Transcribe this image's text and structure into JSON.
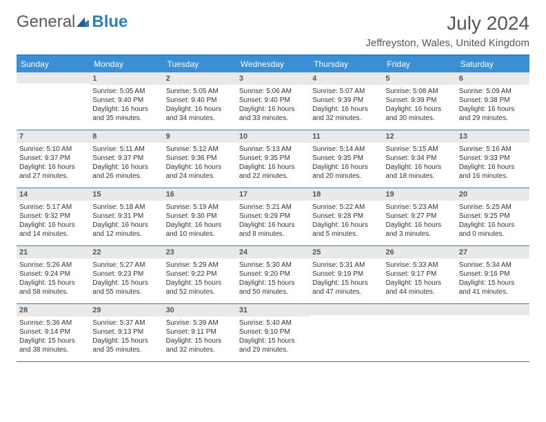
{
  "logo": {
    "text_gray": "General",
    "text_blue": "Blue"
  },
  "title": "July 2024",
  "location": "Jeffreyston, Wales, United Kingdom",
  "colors": {
    "header_bg": "#3b8fd4",
    "border": "#2d7fc1",
    "daynum_bg": "#e9e9e9",
    "text": "#333333",
    "title_text": "#555555"
  },
  "fonts": {
    "title_size": 28,
    "location_size": 15,
    "dayhead_size": 12,
    "cell_size": 10,
    "daynum_size": 11
  },
  "day_names": [
    "Sunday",
    "Monday",
    "Tuesday",
    "Wednesday",
    "Thursday",
    "Friday",
    "Saturday"
  ],
  "weeks": [
    [
      {
        "day": "",
        "sunrise": "",
        "sunset": "",
        "daylight1": "",
        "daylight2": ""
      },
      {
        "day": "1",
        "sunrise": "Sunrise: 5:05 AM",
        "sunset": "Sunset: 9:40 PM",
        "daylight1": "Daylight: 16 hours",
        "daylight2": "and 35 minutes."
      },
      {
        "day": "2",
        "sunrise": "Sunrise: 5:05 AM",
        "sunset": "Sunset: 9:40 PM",
        "daylight1": "Daylight: 16 hours",
        "daylight2": "and 34 minutes."
      },
      {
        "day": "3",
        "sunrise": "Sunrise: 5:06 AM",
        "sunset": "Sunset: 9:40 PM",
        "daylight1": "Daylight: 16 hours",
        "daylight2": "and 33 minutes."
      },
      {
        "day": "4",
        "sunrise": "Sunrise: 5:07 AM",
        "sunset": "Sunset: 9:39 PM",
        "daylight1": "Daylight: 16 hours",
        "daylight2": "and 32 minutes."
      },
      {
        "day": "5",
        "sunrise": "Sunrise: 5:08 AM",
        "sunset": "Sunset: 9:39 PM",
        "daylight1": "Daylight: 16 hours",
        "daylight2": "and 30 minutes."
      },
      {
        "day": "6",
        "sunrise": "Sunrise: 5:09 AM",
        "sunset": "Sunset: 9:38 PM",
        "daylight1": "Daylight: 16 hours",
        "daylight2": "and 29 minutes."
      }
    ],
    [
      {
        "day": "7",
        "sunrise": "Sunrise: 5:10 AM",
        "sunset": "Sunset: 9:37 PM",
        "daylight1": "Daylight: 16 hours",
        "daylight2": "and 27 minutes."
      },
      {
        "day": "8",
        "sunrise": "Sunrise: 5:11 AM",
        "sunset": "Sunset: 9:37 PM",
        "daylight1": "Daylight: 16 hours",
        "daylight2": "and 26 minutes."
      },
      {
        "day": "9",
        "sunrise": "Sunrise: 5:12 AM",
        "sunset": "Sunset: 9:36 PM",
        "daylight1": "Daylight: 16 hours",
        "daylight2": "and 24 minutes."
      },
      {
        "day": "10",
        "sunrise": "Sunrise: 5:13 AM",
        "sunset": "Sunset: 9:35 PM",
        "daylight1": "Daylight: 16 hours",
        "daylight2": "and 22 minutes."
      },
      {
        "day": "11",
        "sunrise": "Sunrise: 5:14 AM",
        "sunset": "Sunset: 9:35 PM",
        "daylight1": "Daylight: 16 hours",
        "daylight2": "and 20 minutes."
      },
      {
        "day": "12",
        "sunrise": "Sunrise: 5:15 AM",
        "sunset": "Sunset: 9:34 PM",
        "daylight1": "Daylight: 16 hours",
        "daylight2": "and 18 minutes."
      },
      {
        "day": "13",
        "sunrise": "Sunrise: 5:16 AM",
        "sunset": "Sunset: 9:33 PM",
        "daylight1": "Daylight: 16 hours",
        "daylight2": "and 16 minutes."
      }
    ],
    [
      {
        "day": "14",
        "sunrise": "Sunrise: 5:17 AM",
        "sunset": "Sunset: 9:32 PM",
        "daylight1": "Daylight: 16 hours",
        "daylight2": "and 14 minutes."
      },
      {
        "day": "15",
        "sunrise": "Sunrise: 5:18 AM",
        "sunset": "Sunset: 9:31 PM",
        "daylight1": "Daylight: 16 hours",
        "daylight2": "and 12 minutes."
      },
      {
        "day": "16",
        "sunrise": "Sunrise: 5:19 AM",
        "sunset": "Sunset: 9:30 PM",
        "daylight1": "Daylight: 16 hours",
        "daylight2": "and 10 minutes."
      },
      {
        "day": "17",
        "sunrise": "Sunrise: 5:21 AM",
        "sunset": "Sunset: 9:29 PM",
        "daylight1": "Daylight: 16 hours",
        "daylight2": "and 8 minutes."
      },
      {
        "day": "18",
        "sunrise": "Sunrise: 5:22 AM",
        "sunset": "Sunset: 9:28 PM",
        "daylight1": "Daylight: 16 hours",
        "daylight2": "and 5 minutes."
      },
      {
        "day": "19",
        "sunrise": "Sunrise: 5:23 AM",
        "sunset": "Sunset: 9:27 PM",
        "daylight1": "Daylight: 16 hours",
        "daylight2": "and 3 minutes."
      },
      {
        "day": "20",
        "sunrise": "Sunrise: 5:25 AM",
        "sunset": "Sunset: 9:25 PM",
        "daylight1": "Daylight: 16 hours",
        "daylight2": "and 0 minutes."
      }
    ],
    [
      {
        "day": "21",
        "sunrise": "Sunrise: 5:26 AM",
        "sunset": "Sunset: 9:24 PM",
        "daylight1": "Daylight: 15 hours",
        "daylight2": "and 58 minutes."
      },
      {
        "day": "22",
        "sunrise": "Sunrise: 5:27 AM",
        "sunset": "Sunset: 9:23 PM",
        "daylight1": "Daylight: 15 hours",
        "daylight2": "and 55 minutes."
      },
      {
        "day": "23",
        "sunrise": "Sunrise: 5:29 AM",
        "sunset": "Sunset: 9:22 PM",
        "daylight1": "Daylight: 15 hours",
        "daylight2": "and 52 minutes."
      },
      {
        "day": "24",
        "sunrise": "Sunrise: 5:30 AM",
        "sunset": "Sunset: 9:20 PM",
        "daylight1": "Daylight: 15 hours",
        "daylight2": "and 50 minutes."
      },
      {
        "day": "25",
        "sunrise": "Sunrise: 5:31 AM",
        "sunset": "Sunset: 9:19 PM",
        "daylight1": "Daylight: 15 hours",
        "daylight2": "and 47 minutes."
      },
      {
        "day": "26",
        "sunrise": "Sunrise: 5:33 AM",
        "sunset": "Sunset: 9:17 PM",
        "daylight1": "Daylight: 15 hours",
        "daylight2": "and 44 minutes."
      },
      {
        "day": "27",
        "sunrise": "Sunrise: 5:34 AM",
        "sunset": "Sunset: 9:16 PM",
        "daylight1": "Daylight: 15 hours",
        "daylight2": "and 41 minutes."
      }
    ],
    [
      {
        "day": "28",
        "sunrise": "Sunrise: 5:36 AM",
        "sunset": "Sunset: 9:14 PM",
        "daylight1": "Daylight: 15 hours",
        "daylight2": "and 38 minutes."
      },
      {
        "day": "29",
        "sunrise": "Sunrise: 5:37 AM",
        "sunset": "Sunset: 9:13 PM",
        "daylight1": "Daylight: 15 hours",
        "daylight2": "and 35 minutes."
      },
      {
        "day": "30",
        "sunrise": "Sunrise: 5:39 AM",
        "sunset": "Sunset: 9:11 PM",
        "daylight1": "Daylight: 15 hours",
        "daylight2": "and 32 minutes."
      },
      {
        "day": "31",
        "sunrise": "Sunrise: 5:40 AM",
        "sunset": "Sunset: 9:10 PM",
        "daylight1": "Daylight: 15 hours",
        "daylight2": "and 29 minutes."
      },
      {
        "day": "",
        "sunrise": "",
        "sunset": "",
        "daylight1": "",
        "daylight2": ""
      },
      {
        "day": "",
        "sunrise": "",
        "sunset": "",
        "daylight1": "",
        "daylight2": ""
      },
      {
        "day": "",
        "sunrise": "",
        "sunset": "",
        "daylight1": "",
        "daylight2": ""
      }
    ]
  ]
}
